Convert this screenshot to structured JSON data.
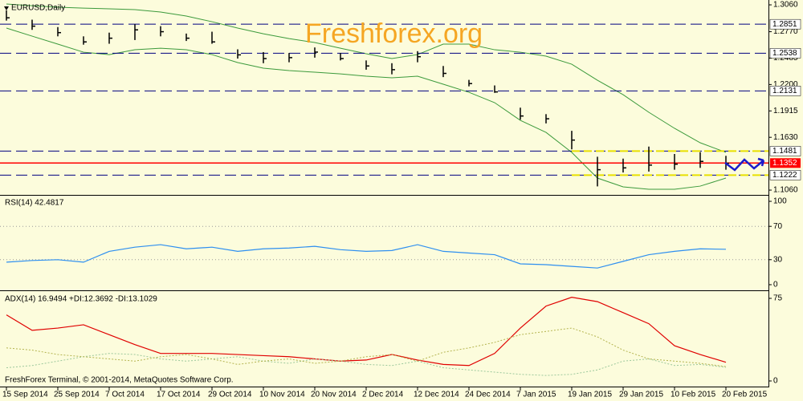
{
  "chart_data": [
    {
      "type": "ohlc",
      "title": "EURUSD,Daily",
      "watermark": "Freshforex.org",
      "ylim": [
        1.1017,
        1.3095
      ],
      "yticks": [
        {
          "value": 1.306,
          "label": "1.3060"
        },
        {
          "value": 1.277,
          "label": "1.2770"
        },
        1.2485,
        {
          "value": 1.22,
          "label": "1.2200"
        },
        1.1915,
        {
          "value": 1.163,
          "label": "1.1630"
        },
        {
          "value": 1.106,
          "label": "1.1060"
        }
      ],
      "color": "#000000",
      "high": [
        1.3,
        1.29,
        1.282,
        1.272,
        1.276,
        1.285,
        1.283,
        1.275,
        1.277,
        1.258,
        1.255,
        1.254,
        1.26,
        1.254,
        1.246,
        1.243,
        1.256,
        1.24,
        1.225,
        1.219,
        1.195,
        1.188,
        1.17,
        1.142,
        1.14,
        1.153,
        1.145,
        1.147,
        1.143
      ],
      "low": [
        1.289,
        1.279,
        1.272,
        1.263,
        1.264,
        1.268,
        1.272,
        1.267,
        1.264,
        1.248,
        1.243,
        1.244,
        1.249,
        1.246,
        1.236,
        1.231,
        1.244,
        1.228,
        1.218,
        1.211,
        1.182,
        1.178,
        1.15,
        1.11,
        1.125,
        1.126,
        1.128,
        1.13,
        1.128
      ],
      "close": [
        1.292,
        1.283,
        1.276,
        1.266,
        1.27,
        1.279,
        1.277,
        1.27,
        1.266,
        1.252,
        1.248,
        1.249,
        1.255,
        1.248,
        1.24,
        1.236,
        1.25,
        1.232,
        1.221,
        1.212,
        1.186,
        1.183,
        1.16,
        1.128,
        1.13,
        1.133,
        1.134,
        1.137,
        1.135
      ],
      "bands": [
        {
          "color": "#3c9a3c",
          "values": [
            1.3069,
            1.3051,
            1.3034,
            1.3025,
            1.3017,
            1.3008,
            1.2982,
            1.2939,
            1.2878,
            1.2809,
            1.2748,
            1.2696,
            1.2653,
            1.2592,
            1.2532,
            1.248,
            1.2523,
            1.2636,
            1.2636,
            1.2575,
            1.2549,
            1.2506,
            1.2419,
            1.2246,
            1.209,
            1.19,
            1.1727,
            1.1571,
            1.1467
          ]
        },
        {
          "color": "#3c9a3c",
          "values": [
            1.2809,
            1.2722,
            1.2636,
            1.2549,
            1.2523,
            1.2575,
            1.2592,
            1.2575,
            1.2523,
            1.2437,
            1.2376,
            1.235,
            1.2333,
            1.2315,
            1.229,
            1.2272,
            1.229,
            1.2203,
            1.2116,
            1.2004,
            1.1813,
            1.1683,
            1.1467,
            1.119,
            1.1095,
            1.1069,
            1.1069,
            1.1103,
            1.119
          ]
        }
      ],
      "levels": [
        1.2851,
        1.2538,
        1.2131,
        1.1481,
        1.1222
      ],
      "level_color": "#000080",
      "current": 1.1352,
      "current_color": "#ff0000",
      "channel_color": "#e8e000"
    },
    {
      "type": "line",
      "title": "RSI(14) 42.4817",
      "ylim": [
        -5.8,
        105.8
      ],
      "yticks": [
        100,
        70,
        30,
        0
      ],
      "levels": [
        70,
        30
      ],
      "series": [
        {
          "color": "#2e8ff0",
          "values": [
            27,
            29,
            30,
            27,
            40,
            45,
            48,
            43,
            45,
            40,
            43,
            44,
            46,
            42,
            40,
            41,
            48,
            40,
            38,
            36,
            25,
            24,
            22,
            20,
            28,
            36,
            40,
            43,
            42.5
          ]
        }
      ]
    },
    {
      "type": "line",
      "title": "ADX(14) 16.9494 +DI:12.3692 -DI:13.1029",
      "footer": "FreshForex Terminal, © 2001-2014, MetaQuotes Software Corp.",
      "ylim": [
        -5.1,
        80.1
      ],
      "yticks": [
        75,
        0
      ],
      "categories": [
        "15 Sep 2014",
        null,
        "25 Sep 2014",
        null,
        "7 Oct 2014",
        null,
        "17 Oct 2014",
        null,
        "29 Oct 2014",
        null,
        "10 Nov 2014",
        null,
        "20 Nov 2014",
        null,
        "2 Dec 2014",
        null,
        "12 Dec 2014",
        null,
        "24 Dec 2014",
        null,
        "7 Jan 2015",
        null,
        "19 Jan 2015",
        null,
        "29 Jan 2015",
        null,
        "10 Feb 2015",
        null,
        "20 Feb 2015"
      ],
      "series": [
        {
          "color": "#e00000",
          "style": "solid",
          "values": [
            60,
            46,
            48,
            51,
            42,
            33,
            25,
            25,
            25,
            24,
            23,
            22,
            20,
            18,
            19,
            24,
            19,
            15,
            14,
            25,
            48,
            68,
            76,
            72,
            62,
            52,
            32,
            24,
            17
          ]
        },
        {
          "color": "#9cc89c",
          "style": "dotted",
          "values": [
            12,
            14,
            18,
            22,
            25,
            24,
            20,
            18,
            20,
            22,
            18,
            16,
            20,
            18,
            15,
            14,
            18,
            12,
            10,
            8,
            6,
            5,
            6,
            10,
            18,
            20,
            14,
            15,
            12.4
          ]
        },
        {
          "color": "#b4b450",
          "style": "dotted",
          "values": [
            30,
            28,
            24,
            22,
            20,
            18,
            22,
            24,
            20,
            15,
            18,
            20,
            16,
            18,
            22,
            24,
            18,
            26,
            30,
            35,
            42,
            45,
            48,
            40,
            28,
            20,
            18,
            16,
            13.1
          ]
        }
      ]
    }
  ]
}
